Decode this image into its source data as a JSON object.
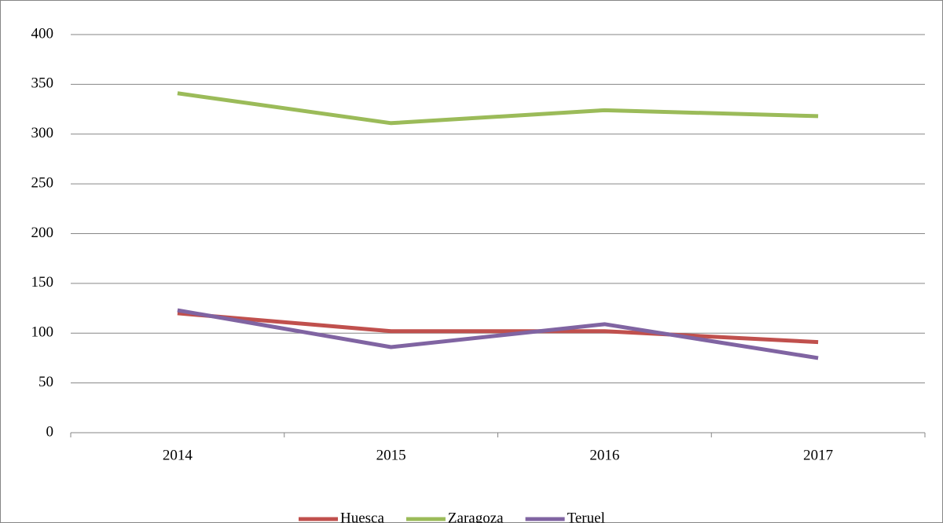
{
  "chart_data": {
    "type": "line",
    "categories": [
      "2014",
      "2015",
      "2016",
      "2017"
    ],
    "series": [
      {
        "name": "Huesca",
        "color": "#c0504d",
        "values": [
          120,
          102,
          102,
          91
        ]
      },
      {
        "name": "Zaragoza",
        "color": "#9bbb59",
        "values": [
          341,
          311,
          324,
          318
        ]
      },
      {
        "name": "Teruel",
        "color": "#8064a2",
        "values": [
          123,
          86,
          109,
          75
        ]
      }
    ],
    "ylim": [
      0,
      400
    ],
    "yticks": [
      0,
      50,
      100,
      150,
      200,
      250,
      300,
      350,
      400
    ],
    "grid": true,
    "legend": "bottom"
  }
}
